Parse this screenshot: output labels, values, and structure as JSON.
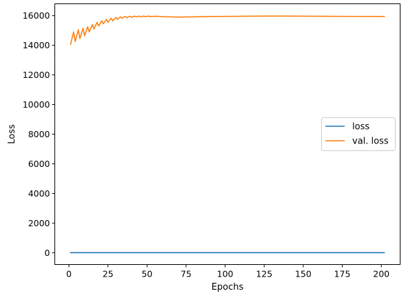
{
  "chart_data": {
    "type": "line",
    "title": "",
    "xlabel": "Epochs",
    "ylabel": "Loss",
    "xlim": [
      -9.05,
      212.05
    ],
    "ylim": [
      -800,
      16800
    ],
    "xticks": [
      0,
      25,
      50,
      75,
      100,
      125,
      150,
      175,
      200
    ],
    "yticks": [
      0,
      2000,
      4000,
      6000,
      8000,
      10000,
      12000,
      14000,
      16000
    ],
    "grid": false,
    "legend": {
      "placement": "center-right"
    },
    "series": [
      {
        "name": "loss",
        "color": "#1f77b4",
        "x": [
          1,
          50,
          100,
          150,
          202
        ],
        "y": [
          0,
          0,
          0,
          0,
          0
        ]
      },
      {
        "name": "val. loss",
        "color": "#ff7f0e",
        "x": [
          1,
          3,
          4,
          6,
          7,
          9,
          10,
          12,
          13,
          15,
          16,
          18,
          19,
          21,
          22,
          24,
          25,
          27,
          28,
          30,
          31,
          33,
          34,
          36,
          37,
          39,
          40,
          42,
          43,
          45,
          46,
          48,
          49,
          51,
          52,
          55,
          58,
          60,
          65,
          70,
          75,
          80,
          90,
          100,
          110,
          125,
          140,
          160,
          180,
          202
        ],
        "y": [
          14050,
          14900,
          14250,
          15050,
          14450,
          15150,
          14650,
          15250,
          14900,
          15400,
          15100,
          15550,
          15300,
          15650,
          15450,
          15750,
          15550,
          15830,
          15650,
          15880,
          15750,
          15920,
          15820,
          15950,
          15860,
          15960,
          15890,
          15970,
          15910,
          15970,
          15920,
          15970,
          15930,
          15970,
          15940,
          15960,
          15950,
          15930,
          15920,
          15900,
          15910,
          15920,
          15940,
          15950,
          15960,
          15970,
          15970,
          15960,
          15950,
          15940
        ]
      }
    ]
  }
}
